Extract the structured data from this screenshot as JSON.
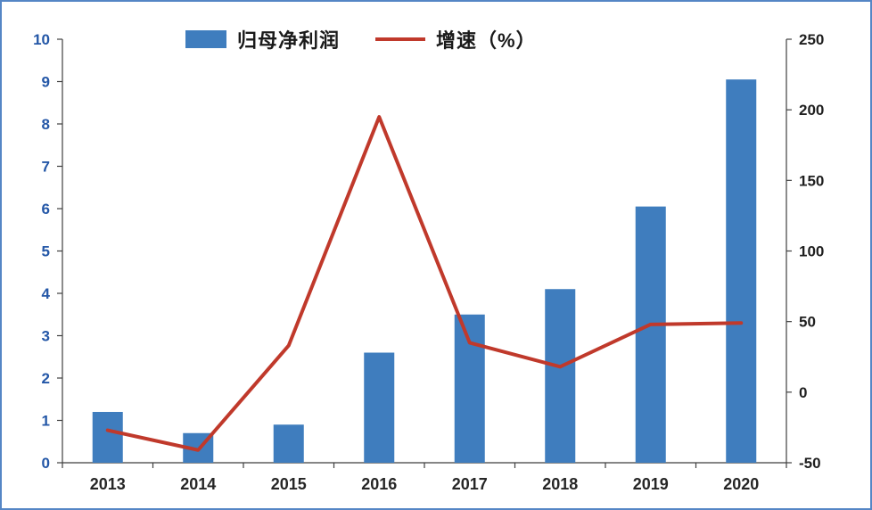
{
  "chart_data": {
    "type": "combo",
    "categories": [
      "2013",
      "2014",
      "2015",
      "2016",
      "2017",
      "2018",
      "2019",
      "2020"
    ],
    "series": [
      {
        "name": "归母净利润",
        "type": "bar",
        "axis": "left",
        "color": "#3F7DBE",
        "values": [
          1.2,
          0.7,
          0.9,
          2.6,
          3.5,
          4.1,
          6.05,
          9.05
        ]
      },
      {
        "name": "增速（%）",
        "type": "line",
        "axis": "right",
        "color": "#C0392B",
        "values": [
          -27,
          -41,
          33,
          195,
          35,
          18,
          48,
          49
        ]
      }
    ],
    "left_axis": {
      "min": 0,
      "max": 10,
      "step": 1,
      "ticks": [
        "0",
        "1",
        "2",
        "3",
        "4",
        "5",
        "6",
        "7",
        "8",
        "9",
        "10"
      ],
      "color": "#2457A7"
    },
    "right_axis": {
      "min": -50,
      "max": 250,
      "step": 50,
      "ticks": [
        "-50",
        "0",
        "50",
        "100",
        "150",
        "200",
        "250"
      ],
      "color": "#1f1f1f"
    },
    "x_axis": {
      "color": "#262626"
    },
    "title": "",
    "grid": false,
    "legend_position": "top"
  },
  "frame": {
    "border_color": "#5586C5",
    "background": "#FFFFFF"
  }
}
